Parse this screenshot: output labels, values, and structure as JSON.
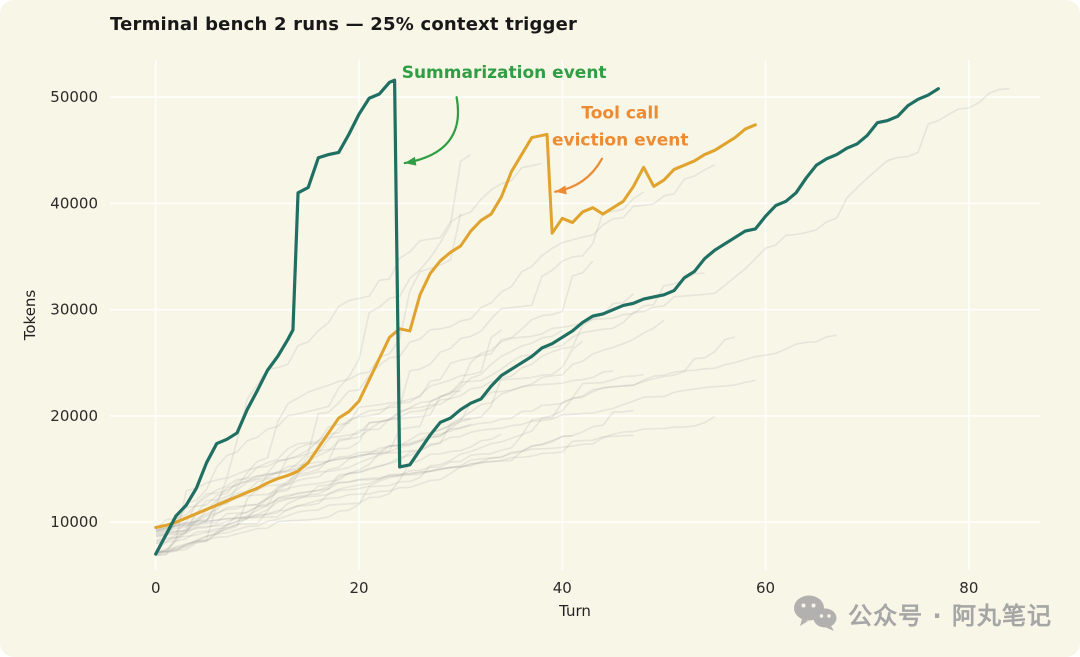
{
  "watermark": {
    "icon": "wechat-icon",
    "text": "公众号 · 阿丸笔记"
  },
  "chart_data": {
    "type": "line",
    "title": "Terminal bench 2 runs — 25% context trigger",
    "xlabel": "Turn",
    "ylabel": "Tokens",
    "xlim": [
      -4.5,
      87
    ],
    "ylim": [
      5500,
      53500
    ],
    "xticks": [
      0,
      20,
      40,
      60,
      80
    ],
    "yticks": [
      10000,
      20000,
      30000,
      40000,
      50000
    ],
    "grid": true,
    "legend": "none",
    "series": [
      {
        "name": "tool-call-eviction-run",
        "color": "#e0a32e",
        "width": 3,
        "points": [
          [
            0,
            9500
          ],
          [
            1,
            9700
          ],
          [
            2,
            10000
          ],
          [
            3,
            10400
          ],
          [
            4,
            10800
          ],
          [
            5,
            11200
          ],
          [
            6,
            11600
          ],
          [
            7,
            12000
          ],
          [
            8,
            12400
          ],
          [
            9,
            12800
          ],
          [
            10,
            13200
          ],
          [
            11,
            13700
          ],
          [
            12,
            14100
          ],
          [
            13,
            14400
          ],
          [
            14,
            14800
          ],
          [
            15,
            15600
          ],
          [
            16,
            17000
          ],
          [
            17,
            18400
          ],
          [
            18,
            19800
          ],
          [
            19,
            20400
          ],
          [
            20,
            21400
          ],
          [
            21,
            23400
          ],
          [
            22,
            25400
          ],
          [
            23,
            27400
          ],
          [
            24,
            28200
          ],
          [
            25,
            28000
          ],
          [
            26,
            31400
          ],
          [
            27,
            33400
          ],
          [
            28,
            34600
          ],
          [
            29,
            35400
          ],
          [
            30,
            36000
          ],
          [
            31,
            37400
          ],
          [
            32,
            38400
          ],
          [
            33,
            39000
          ],
          [
            34,
            40600
          ],
          [
            35,
            43000
          ],
          [
            36,
            44600
          ],
          [
            37,
            46200
          ],
          [
            38,
            46400
          ],
          [
            38.5,
            46500
          ],
          [
            39,
            37200
          ],
          [
            40,
            38600
          ],
          [
            41,
            38200
          ],
          [
            42,
            39200
          ],
          [
            43,
            39600
          ],
          [
            44,
            39000
          ],
          [
            45,
            39600
          ],
          [
            46,
            40200
          ],
          [
            47,
            41600
          ],
          [
            48,
            43400
          ],
          [
            49,
            41600
          ],
          [
            50,
            42200
          ],
          [
            51,
            43200
          ],
          [
            52,
            43600
          ],
          [
            53,
            44000
          ],
          [
            54,
            44600
          ],
          [
            55,
            45000
          ],
          [
            56,
            45600
          ],
          [
            57,
            46200
          ],
          [
            58,
            47000
          ],
          [
            59,
            47400
          ]
        ]
      },
      {
        "name": "summarization-run",
        "color": "#1f6f63",
        "width": 3.2,
        "points": [
          [
            0,
            7000
          ],
          [
            1,
            8800
          ],
          [
            2,
            10600
          ],
          [
            3,
            11600
          ],
          [
            4,
            13200
          ],
          [
            5,
            15600
          ],
          [
            6,
            17400
          ],
          [
            7,
            17800
          ],
          [
            8,
            18400
          ],
          [
            9,
            20600
          ],
          [
            10,
            22400
          ],
          [
            11,
            24300
          ],
          [
            12,
            25600
          ],
          [
            13,
            27200
          ],
          [
            13.5,
            28100
          ],
          [
            14,
            41000
          ],
          [
            15,
            41500
          ],
          [
            16,
            44300
          ],
          [
            17,
            44600
          ],
          [
            18,
            44800
          ],
          [
            19,
            46500
          ],
          [
            20,
            48400
          ],
          [
            21,
            49900
          ],
          [
            22,
            50300
          ],
          [
            23,
            51400
          ],
          [
            23.5,
            51600
          ],
          [
            24,
            15200
          ],
          [
            25,
            15400
          ],
          [
            26,
            16800
          ],
          [
            27,
            18200
          ],
          [
            28,
            19400
          ],
          [
            29,
            19800
          ],
          [
            30,
            20600
          ],
          [
            31,
            21200
          ],
          [
            32,
            21600
          ],
          [
            33,
            22800
          ],
          [
            34,
            23800
          ],
          [
            35,
            24400
          ],
          [
            36,
            25000
          ],
          [
            37,
            25600
          ],
          [
            38,
            26400
          ],
          [
            39,
            26800
          ],
          [
            40,
            27400
          ],
          [
            41,
            28000
          ],
          [
            42,
            28800
          ],
          [
            43,
            29400
          ],
          [
            44,
            29600
          ],
          [
            45,
            30000
          ],
          [
            46,
            30400
          ],
          [
            47,
            30600
          ],
          [
            48,
            31000
          ],
          [
            49,
            31200
          ],
          [
            50,
            31400
          ],
          [
            51,
            31800
          ],
          [
            52,
            33000
          ],
          [
            53,
            33600
          ],
          [
            54,
            34800
          ],
          [
            55,
            35600
          ],
          [
            56,
            36200
          ],
          [
            57,
            36800
          ],
          [
            58,
            37400
          ],
          [
            59,
            37600
          ],
          [
            60,
            38800
          ],
          [
            61,
            39800
          ],
          [
            62,
            40200
          ],
          [
            63,
            41000
          ],
          [
            64,
            42400
          ],
          [
            65,
            43600
          ],
          [
            66,
            44200
          ],
          [
            67,
            44600
          ],
          [
            68,
            45200
          ],
          [
            69,
            45600
          ],
          [
            70,
            46400
          ],
          [
            71,
            47600
          ],
          [
            72,
            47800
          ],
          [
            73,
            48200
          ],
          [
            74,
            49200
          ],
          [
            75,
            49800
          ],
          [
            76,
            50200
          ],
          [
            77,
            50800
          ]
        ]
      }
    ],
    "background_runs": {
      "count": 26,
      "seed": 9,
      "color": "#8f8f8f",
      "opacity": 0.16,
      "start_min": 6800,
      "start_max": 9400,
      "cap": 51500,
      "specials": [
        {
          "len": 84,
          "end": 50800
        },
        {
          "len": 67,
          "end": 27600
        }
      ]
    },
    "annotations": [
      {
        "name": "summarization-event-label",
        "lines": [
          "Summarization event"
        ],
        "color": "#2f9e44",
        "text_xy": [
          24.2,
          51800
        ],
        "anchor": "start",
        "arrow": {
          "from": [
            29.6,
            50000
          ],
          "ctrl": [
            30.6,
            44800
          ],
          "to": [
            24.5,
            43800
          ]
        }
      },
      {
        "name": "tool-call-eviction-label",
        "lines": [
          "Tool call",
          "eviction event"
        ],
        "color": "#ed8b33",
        "text_xy": [
          45.7,
          48000
        ],
        "anchor": "middle",
        "arrow": {
          "from": [
            43.9,
            44200
          ],
          "ctrl": [
            42.4,
            41600
          ],
          "to": [
            39.3,
            41100
          ]
        }
      }
    ]
  }
}
